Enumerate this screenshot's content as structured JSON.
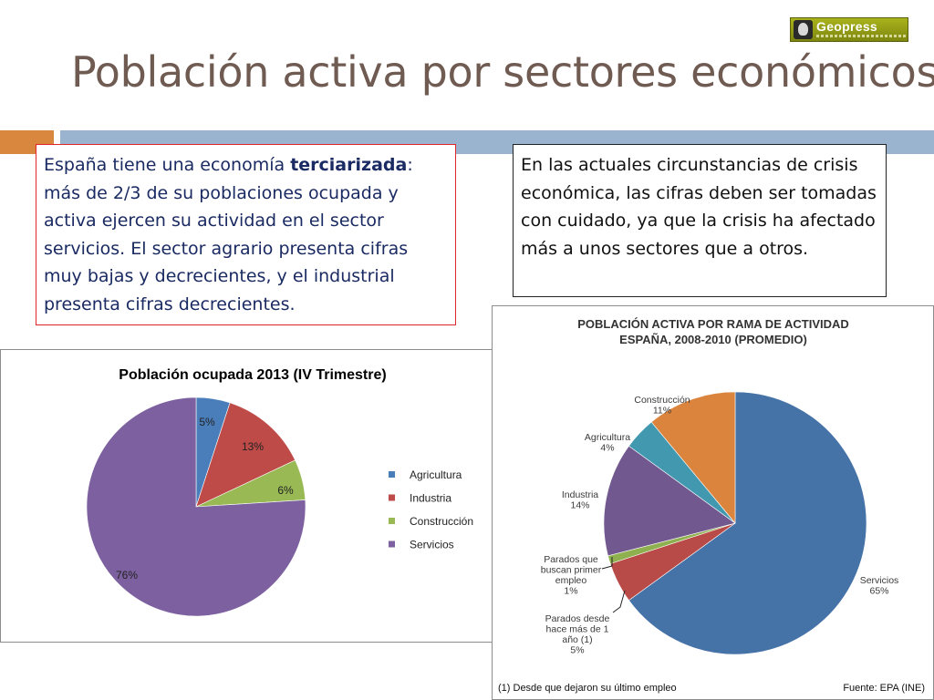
{
  "logo": {
    "name": "Geopress"
  },
  "title": "Población activa por sectores económicos",
  "text_left": {
    "before": "España tiene una economía ",
    "bold": "terciarizada",
    "after": ": más de 2/3 de su poblaciones ocupada y activa ejercen su actividad en el sector servicios. El sector agrario presenta cifras muy bajas y decrecientes, y el industrial presenta cifras decrecientes."
  },
  "text_right": "En las actuales circunstancias de crisis económica, las cifras deben ser tomadas con cuidado, ya que la crisis ha afectado más a unos sectores que a otros.",
  "colors": {
    "title": "#6f5b52",
    "orange_bar": "#d9873f",
    "blue_bar": "#9ab3cf"
  },
  "chart_data": [
    {
      "type": "pie",
      "title": "Población ocupada 2013 (IV Trimestre)",
      "legend_position": "right",
      "slices": [
        {
          "label": "Agricultura",
          "value": 5,
          "display": "5%",
          "color": "#4a7ebb"
        },
        {
          "label": "Industria",
          "value": 13,
          "display": "13%",
          "color": "#be4b48"
        },
        {
          "label": "Construcción",
          "value": 6,
          "display": "6%",
          "color": "#98b954"
        },
        {
          "label": "Servicios",
          "value": 76,
          "display": "76%",
          "color": "#7d60a0"
        }
      ]
    },
    {
      "type": "pie",
      "title_line1": "POBLACIÓN ACTIVA POR RAMA DE ACTIVIDAD",
      "title_line2": "ESPAÑA, 2008-2010 (PROMEDIO)",
      "slices": [
        {
          "label": "Servicios",
          "value": 65,
          "display": "65%",
          "color": "#4572a7"
        },
        {
          "label": "Parados desde hace más de 1 año (1)",
          "value": 5,
          "display": "5%",
          "color": "#b84a47"
        },
        {
          "label": "Parados que buscan primer empleo",
          "value": 1,
          "display": "1%",
          "color": "#8fb04e"
        },
        {
          "label": "Industria",
          "value": 14,
          "display": "14%",
          "color": "#71588f"
        },
        {
          "label": "Agricultura",
          "value": 4,
          "display": "4%",
          "color": "#4198af"
        },
        {
          "label": "Construcción",
          "value": 11,
          "display": "11%",
          "color": "#db843d"
        }
      ],
      "labels": {
        "servicios": [
          "Servicios",
          "65%"
        ],
        "parados_largo": [
          "Parados desde",
          "hace más de 1",
          "año (1)",
          "5%"
        ],
        "parados_primer": [
          "Parados que",
          "buscan primer",
          "empleo",
          "1%"
        ],
        "industria": [
          "Industria",
          "14%"
        ],
        "agricultura": [
          "Agricultura",
          "4%"
        ],
        "construccion": [
          "Construcción",
          "11%"
        ]
      },
      "footnote": "(1) Desde que dejaron su último empleo",
      "source": "Fuente: EPA (INE)"
    }
  ]
}
